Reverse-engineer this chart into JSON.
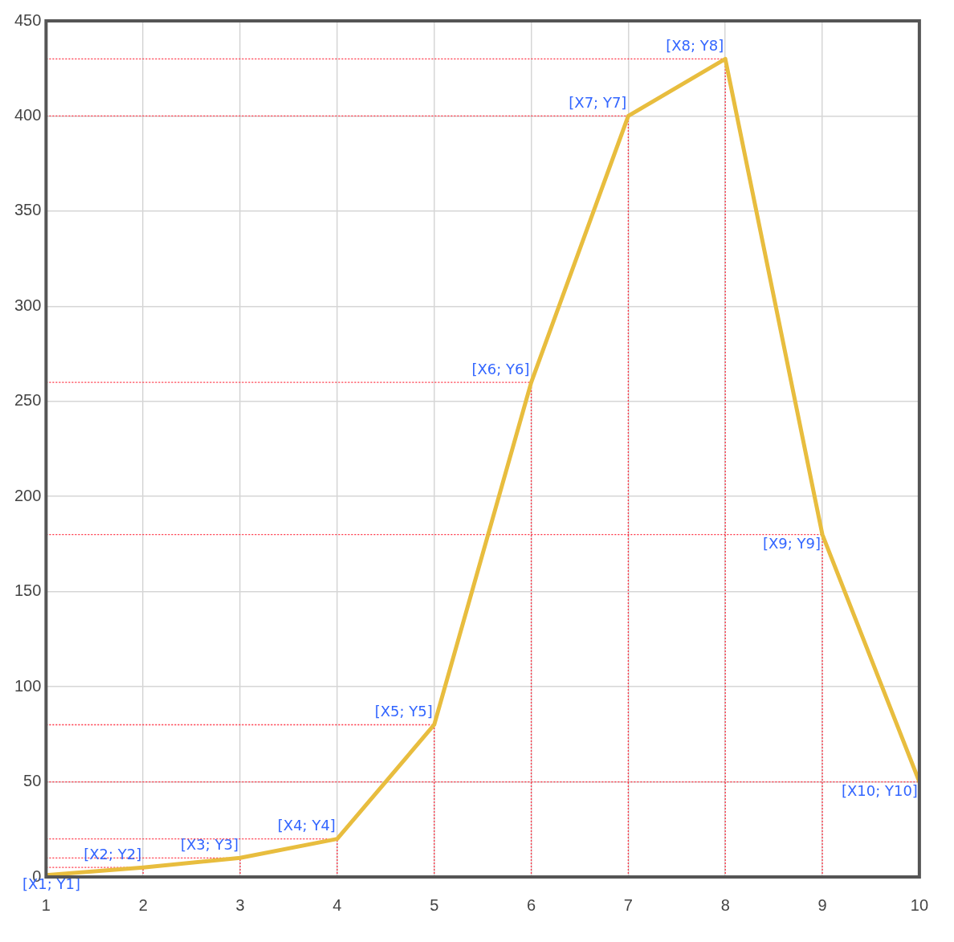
{
  "chart_data": {
    "type": "line",
    "x": [
      1,
      2,
      3,
      4,
      5,
      6,
      7,
      8,
      9,
      10
    ],
    "series": [
      {
        "color": "#e8bd3e",
        "values": [
          1,
          5,
          10,
          20,
          80,
          260,
          400,
          430,
          180,
          50
        ]
      }
    ],
    "xlim": [
      1,
      10
    ],
    "xticks": [
      1,
      2,
      3,
      4,
      5,
      6,
      7,
      8,
      9,
      10
    ],
    "ylim": [
      0,
      450
    ],
    "yticks": [
      0,
      50,
      100,
      150,
      200,
      250,
      300,
      350,
      400,
      450
    ],
    "grid": true,
    "legend": false,
    "marker": "none",
    "line_style": "solid",
    "annotations": [
      {
        "text": "[X1; Y1]",
        "x": 1,
        "y": 1
      },
      {
        "text": "[X2; Y2]",
        "x": 2,
        "y": 5
      },
      {
        "text": "[X3; Y3]",
        "x": 3,
        "y": 10
      },
      {
        "text": "[X4; Y4]",
        "x": 4,
        "y": 20
      },
      {
        "text": "[X5; Y5]",
        "x": 5,
        "y": 80
      },
      {
        "text": "[X6; Y6]",
        "x": 6,
        "y": 260
      },
      {
        "text": "[X7; Y7]",
        "x": 7,
        "y": 400
      },
      {
        "text": "[X8; Y8]",
        "x": 8,
        "y": 430
      },
      {
        "text": "[X9; Y9]",
        "x": 9,
        "y": 180
      },
      {
        "text": "[X10; Y10]",
        "x": 10,
        "y": 50
      }
    ]
  }
}
